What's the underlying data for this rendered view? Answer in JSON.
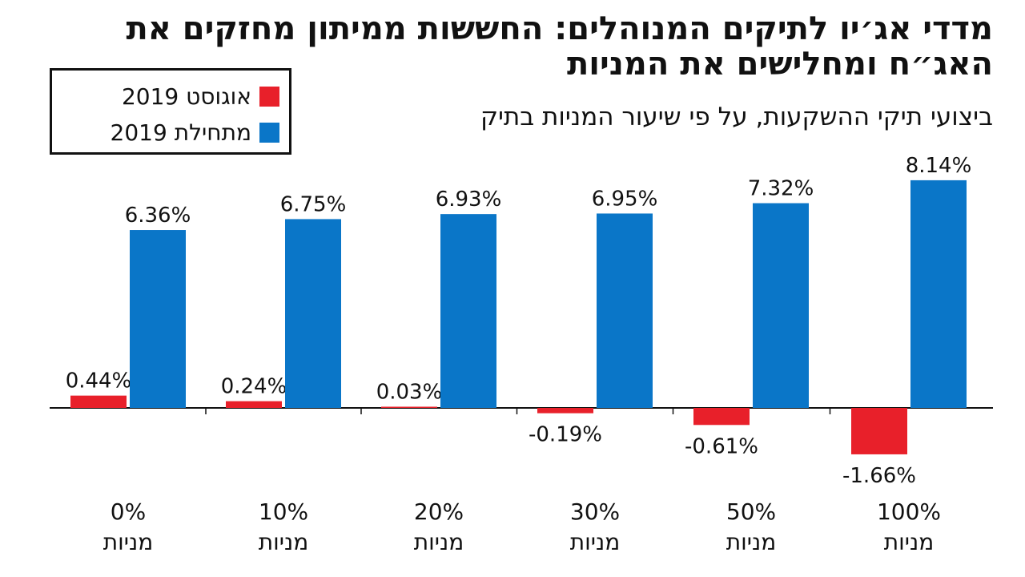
{
  "title": "מדדי אג׳יו לתיקים המנוהלים: החששות ממיתון מחזקים את האג״ח ומחלישים את המניות",
  "subtitle": "ביצועי תיקי ההשקעות, על פי שיעור המניות בתיק",
  "legend": [
    {
      "label": "אוגוסט 2019",
      "color": "#e8202a"
    },
    {
      "label": "מתחילת 2019",
      "color": "#0a76c8"
    }
  ],
  "chart_data": {
    "type": "bar",
    "categories": [
      {
        "line1": "0%",
        "line2": "מניות"
      },
      {
        "line1": "10%",
        "line2": "מניות"
      },
      {
        "line1": "20%",
        "line2": "מניות"
      },
      {
        "line1": "30%",
        "line2": "מניות"
      },
      {
        "line1": "50%",
        "line2": "מניות"
      },
      {
        "line1": "100%",
        "line2": "מניות"
      }
    ],
    "series": [
      {
        "name": "אוגוסט 2019",
        "color": "#e8202a",
        "values": [
          0.44,
          0.24,
          0.03,
          -0.19,
          -0.61,
          -1.66
        ],
        "labels": [
          "0.44%",
          "0.24%",
          "0.03%",
          "-0.19%",
          "-0.61%",
          "-1.66%"
        ]
      },
      {
        "name": "מתחילת 2019",
        "color": "#0a76c8",
        "values": [
          6.36,
          6.75,
          6.93,
          6.95,
          7.32,
          8.14
        ],
        "labels": [
          "6.36%",
          "6.75%",
          "6.93%",
          "6.95%",
          "7.32%",
          "8.14%"
        ]
      }
    ],
    "grid": false,
    "legend_position": "top-left"
  }
}
